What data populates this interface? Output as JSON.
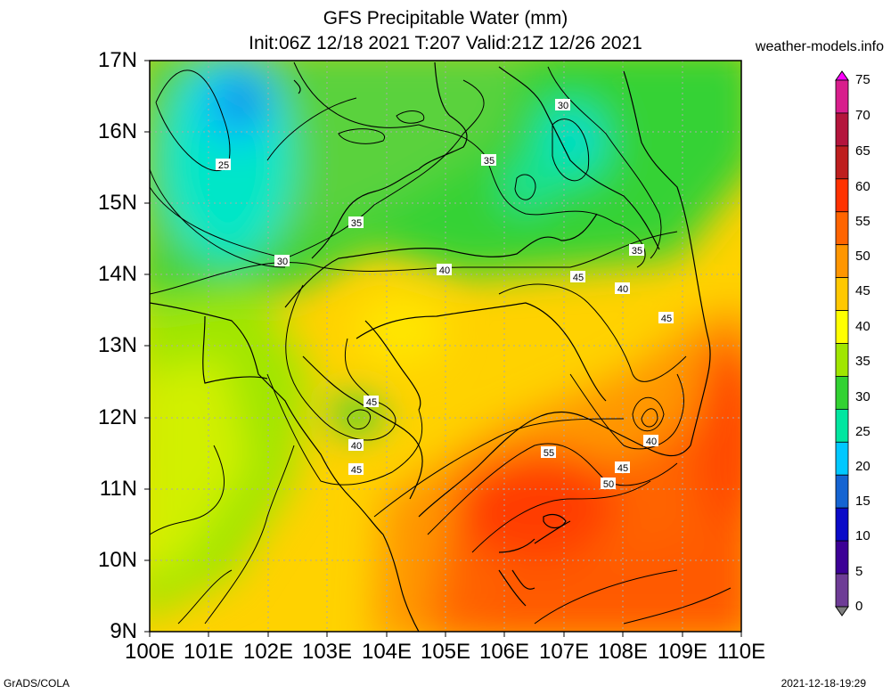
{
  "header": {
    "title": "GFS Precipitable Water (mm)",
    "subtitle": "Init:06Z 12/18 2021 T:207 Valid:21Z 12/26 2021",
    "site": "weather-models.info"
  },
  "footer": {
    "left": "GrADS/COLA",
    "right": "2021-12-18-19:29"
  },
  "map": {
    "lat_labels": [
      "17N",
      "16N",
      "15N",
      "14N",
      "13N",
      "12N",
      "11N",
      "10N",
      "9N"
    ],
    "lon_labels": [
      "100E",
      "101E",
      "102E",
      "103E",
      "104E",
      "105E",
      "106E",
      "107E",
      "108E",
      "109E",
      "110E"
    ],
    "lat_range": [
      9,
      17
    ],
    "lon_range": [
      100,
      110
    ],
    "contour_labels": [
      "25",
      "30",
      "30",
      "35",
      "35",
      "35",
      "40",
      "40",
      "40",
      "45",
      "45",
      "45",
      "45",
      "45",
      "50",
      "55"
    ]
  },
  "colorbar": {
    "ticks": [
      "75",
      "70",
      "65",
      "60",
      "55",
      "50",
      "45",
      "40",
      "35",
      "30",
      "25",
      "20",
      "15",
      "10",
      "5",
      "0"
    ],
    "colors": [
      "#ff00ff",
      "#d81e8c",
      "#b4143c",
      "#be1e1e",
      "#ff3200",
      "#ff6400",
      "#ff9600",
      "#ffc800",
      "#ffff00",
      "#a0e600",
      "#32d232",
      "#00e6a0",
      "#00c8ff",
      "#1464d2",
      "#0a0ac8",
      "#3c0096",
      "#6e3c96",
      "#808080"
    ]
  },
  "colors": {
    "background": "#ffffff",
    "field_low": "#00e6c8",
    "field_mid": "#ffd200",
    "field_high": "#ff3c00"
  }
}
